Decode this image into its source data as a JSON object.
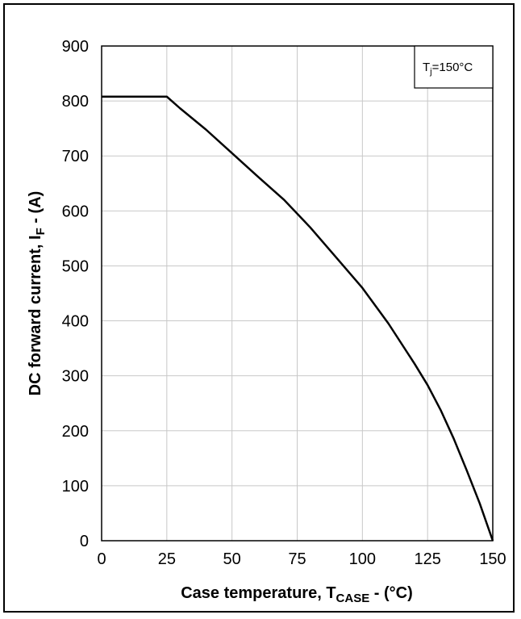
{
  "chart_data": {
    "type": "line",
    "xlabel": {
      "main": "Case temperature, T",
      "sub": "CASE",
      "suffix": "  - (°C)"
    },
    "ylabel": {
      "main": "DC forward current, I",
      "sub": "F",
      "suffix": " - (A)"
    },
    "xlim": [
      0,
      150
    ],
    "ylim": [
      0,
      900
    ],
    "xticks": [
      0,
      25,
      50,
      75,
      100,
      125,
      150
    ],
    "yticks": [
      0,
      100,
      200,
      300,
      400,
      500,
      600,
      700,
      800,
      900
    ],
    "grid": true,
    "annotation": {
      "main": "T",
      "sub": "j",
      "suffix": "=150°C",
      "placement": "top-right"
    },
    "series": [
      {
        "x": [
          0,
          25,
          30,
          40,
          50,
          60,
          70,
          80,
          90,
          100,
          110,
          120,
          125,
          130,
          135,
          140,
          145,
          150
        ],
        "y": [
          808,
          808,
          787,
          748,
          705,
          662,
          620,
          570,
          515,
          460,
          395,
          322,
          283,
          238,
          186,
          128,
          68,
          0
        ]
      }
    ],
    "colors": {
      "line": "#000000",
      "grid": "#c8c8c8",
      "axis": "#000000"
    }
  }
}
